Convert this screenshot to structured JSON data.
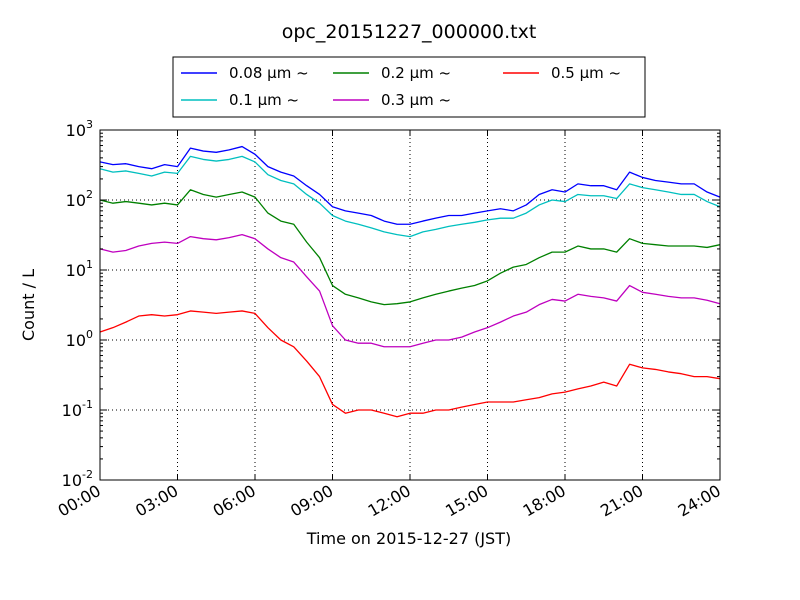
{
  "chart_data": {
    "type": "line",
    "title": "opc_20151227_000000.txt",
    "xlabel": "Time on 2015-12-27 (JST)",
    "ylabel": "Count / L",
    "y_scale": "log",
    "ylim": [
      0.01,
      1000
    ],
    "xlim": [
      "00:00",
      "24:00"
    ],
    "x_tick_labels": [
      "00:00",
      "03:00",
      "06:00",
      "09:00",
      "12:00",
      "15:00",
      "18:00",
      "21:00",
      "24:00"
    ],
    "y_tick_labels": [
      {
        "base": "10",
        "exp": "-2"
      },
      {
        "base": "10",
        "exp": "-1"
      },
      {
        "base": "10",
        "exp": "0"
      },
      {
        "base": "10",
        "exp": "1"
      },
      {
        "base": "10",
        "exp": "2"
      },
      {
        "base": "10",
        "exp": "3"
      }
    ],
    "grid": true,
    "legend_placement": "top-center",
    "x": [
      "00:00",
      "00:30",
      "01:00",
      "01:30",
      "02:00",
      "02:30",
      "03:00",
      "03:30",
      "04:00",
      "04:30",
      "05:00",
      "05:30",
      "06:00",
      "06:30",
      "07:00",
      "07:30",
      "08:00",
      "08:30",
      "09:00",
      "09:30",
      "10:00",
      "10:30",
      "11:00",
      "11:30",
      "12:00",
      "12:30",
      "13:00",
      "13:30",
      "14:00",
      "14:30",
      "15:00",
      "15:30",
      "16:00",
      "16:30",
      "17:00",
      "17:30",
      "18:00",
      "18:30",
      "19:00",
      "19:30",
      "20:00",
      "20:30",
      "21:00",
      "21:30",
      "22:00",
      "22:30",
      "23:00",
      "23:30",
      "24:00"
    ],
    "series": [
      {
        "name": "0.08 μm ~",
        "color": "#0000ff",
        "values": [
          350,
          320,
          330,
          300,
          280,
          320,
          300,
          550,
          500,
          480,
          520,
          580,
          450,
          300,
          250,
          220,
          160,
          120,
          80,
          70,
          65,
          60,
          50,
          45,
          45,
          50,
          55,
          60,
          60,
          65,
          70,
          75,
          70,
          85,
          120,
          140,
          130,
          170,
          160,
          160,
          140,
          250,
          210,
          190,
          180,
          170,
          170,
          130,
          110
        ]
      },
      {
        "name": "0.1 μm ~",
        "color": "#00bfbf",
        "values": [
          280,
          250,
          260,
          240,
          220,
          250,
          240,
          420,
          380,
          360,
          380,
          420,
          350,
          230,
          190,
          170,
          120,
          90,
          60,
          50,
          45,
          40,
          35,
          32,
          30,
          35,
          38,
          42,
          45,
          48,
          52,
          55,
          55,
          65,
          85,
          100,
          95,
          120,
          115,
          115,
          105,
          170,
          150,
          140,
          130,
          120,
          120,
          95,
          80
        ]
      },
      {
        "name": "0.2 μm ~",
        "color": "#008000",
        "values": [
          100,
          90,
          95,
          90,
          85,
          90,
          85,
          140,
          120,
          110,
          120,
          130,
          110,
          65,
          50,
          45,
          25,
          15,
          6,
          4.5,
          4,
          3.5,
          3.2,
          3.3,
          3.5,
          4,
          4.5,
          5,
          5.5,
          6,
          7,
          9,
          11,
          12,
          15,
          18,
          18,
          22,
          20,
          20,
          18,
          28,
          24,
          23,
          22,
          22,
          22,
          21,
          23
        ]
      },
      {
        "name": "0.3 μm ~",
        "color": "#bf00bf",
        "values": [
          20,
          18,
          19,
          22,
          24,
          25,
          24,
          30,
          28,
          27,
          29,
          32,
          28,
          20,
          15,
          13,
          8,
          5,
          1.6,
          1,
          0.9,
          0.9,
          0.8,
          0.8,
          0.8,
          0.9,
          1,
          1,
          1.1,
          1.3,
          1.5,
          1.8,
          2.2,
          2.5,
          3.2,
          3.8,
          3.6,
          4.5,
          4.2,
          4.0,
          3.6,
          6,
          4.8,
          4.5,
          4.2,
          4,
          4,
          3.7,
          3.3
        ]
      },
      {
        "name": "0.5 μm ~",
        "color": "#ff0000",
        "values": [
          1.3,
          1.5,
          1.8,
          2.2,
          2.3,
          2.2,
          2.3,
          2.6,
          2.5,
          2.4,
          2.5,
          2.6,
          2.4,
          1.5,
          1,
          0.8,
          0.5,
          0.3,
          0.12,
          0.09,
          0.1,
          0.1,
          0.09,
          0.08,
          0.09,
          0.09,
          0.1,
          0.1,
          0.11,
          0.12,
          0.13,
          0.13,
          0.13,
          0.14,
          0.15,
          0.17,
          0.18,
          0.2,
          0.22,
          0.25,
          0.22,
          0.45,
          0.4,
          0.38,
          0.35,
          0.33,
          0.3,
          0.3,
          0.28
        ]
      }
    ]
  }
}
